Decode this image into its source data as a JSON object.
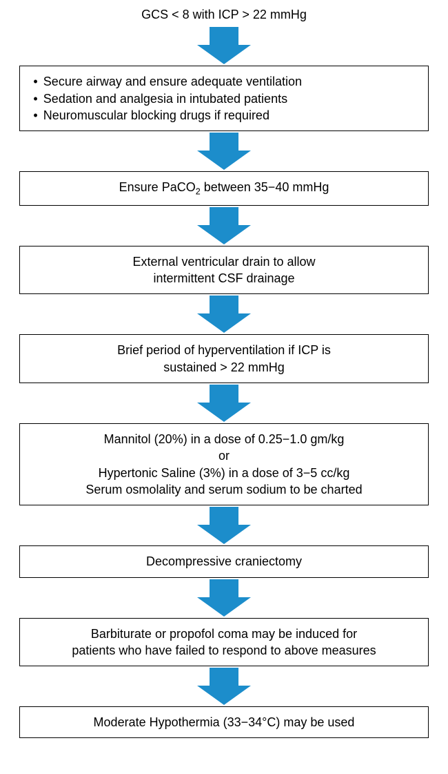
{
  "flowchart": {
    "type": "flowchart",
    "direction": "vertical",
    "arrow_color": "#1c8dcb",
    "arrow_body_width": 42,
    "arrow_head_width": 78,
    "arrow_total_height": 54,
    "arrow_body_height": 26,
    "box_border_color": "#000000",
    "box_background": "#ffffff",
    "text_color": "#000000",
    "font_size": 18,
    "title": "GCS < 8 with ICP > 22 mmHg",
    "nodes": [
      {
        "id": "n1",
        "kind": "bullets",
        "items": [
          "Secure airway and ensure adequate ventilation",
          "Sedation and analgesia in intubated patients",
          "Neuromuscular blocking drugs if required"
        ]
      },
      {
        "id": "n2",
        "kind": "text",
        "html": "Ensure PaCO<sub>2</sub> between 35−40 mmHg"
      },
      {
        "id": "n3",
        "kind": "text",
        "html": "External ventricular drain to allow<br>intermittent CSF drainage"
      },
      {
        "id": "n4",
        "kind": "text",
        "html": "Brief period of hyperventilation if ICP is<br>sustained > 22 mmHg"
      },
      {
        "id": "n5",
        "kind": "text",
        "html": "Mannitol (20%) in a dose of 0.25−1.0 gm/kg<br>or<br>Hypertonic Saline (3%) in a dose of 3−5 cc/kg<br>Serum osmolality and serum sodium to be charted"
      },
      {
        "id": "n6",
        "kind": "text",
        "html": "Decompressive craniectomy"
      },
      {
        "id": "n7",
        "kind": "text",
        "html": "Barbiturate or propofol coma may be induced for<br>patients who have failed to respond to above measures"
      },
      {
        "id": "n8",
        "kind": "text",
        "html": "Moderate Hypothermia (33−34°C) may be used"
      }
    ]
  }
}
